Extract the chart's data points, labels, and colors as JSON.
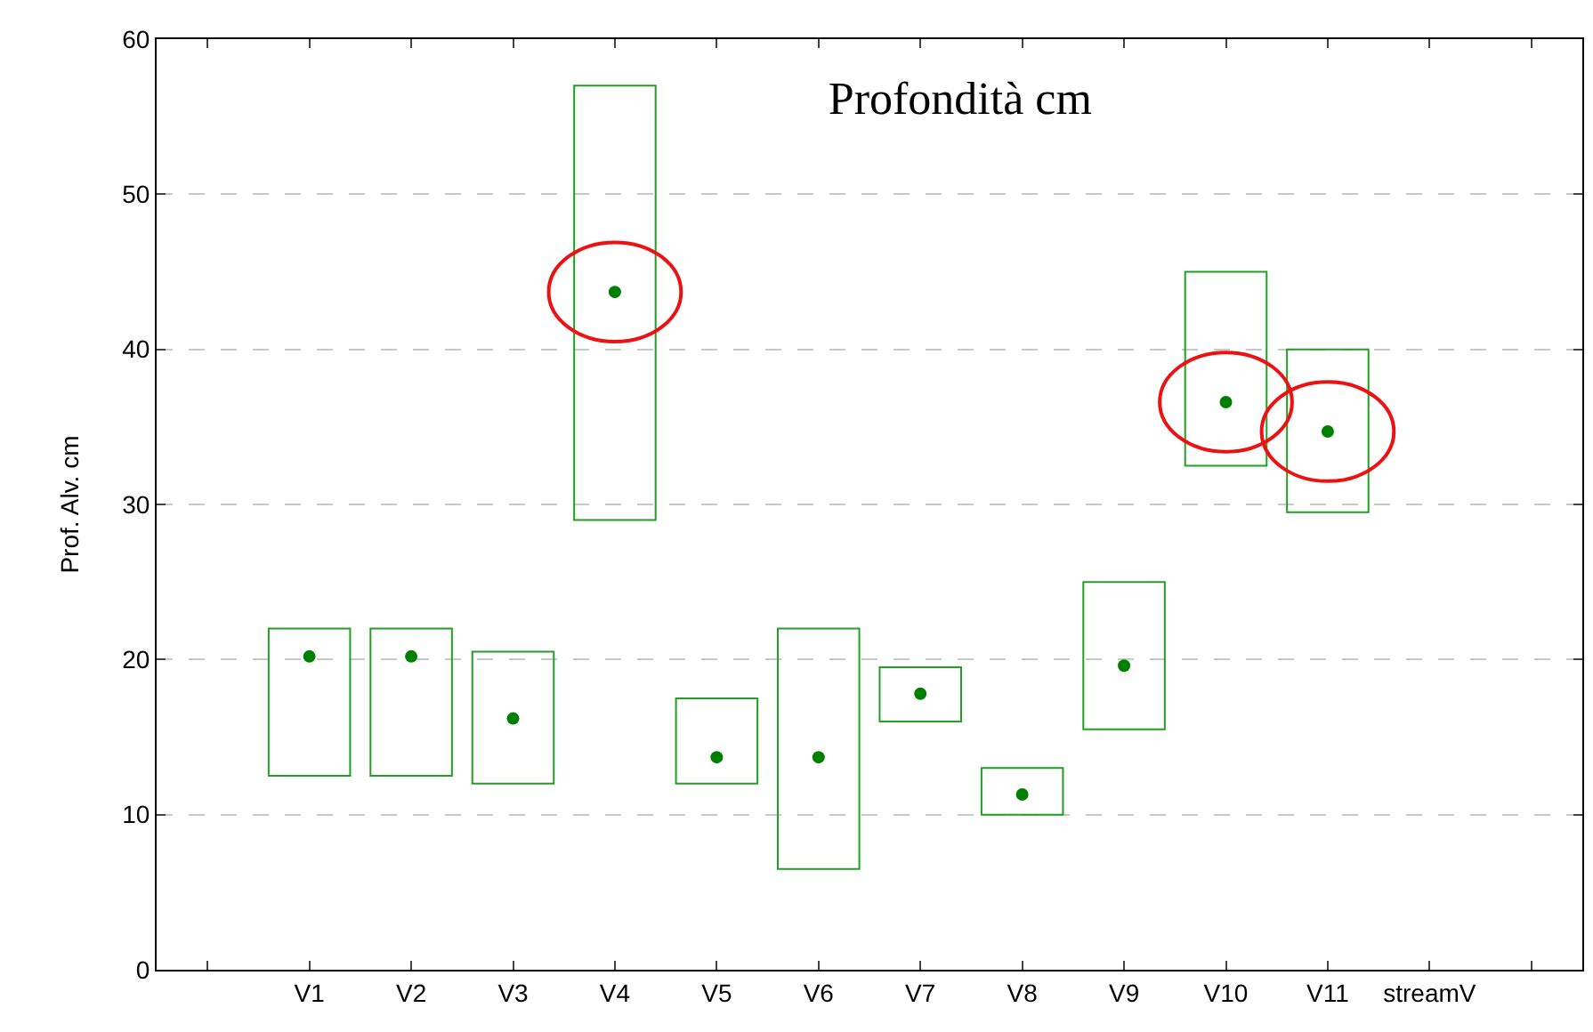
{
  "chart_data": {
    "type": "bar",
    "title": "Profondità cm",
    "ylabel": "Prof. Alv. cm",
    "categories": [
      null,
      "V1",
      "V2",
      "V3",
      "V4",
      "V5",
      "V6",
      "V7",
      "V8",
      "V9",
      "V10",
      "V11",
      "streamV",
      null
    ],
    "ylim": [
      0,
      60
    ],
    "yticks": [
      0,
      10,
      20,
      30,
      40,
      50,
      60
    ],
    "grid": "y",
    "series": [
      {
        "color": "#22a022",
        "base": [
          null,
          12.5,
          12.5,
          12,
          29,
          12,
          6.5,
          16,
          10,
          15.5,
          32.5,
          29.5,
          null,
          null
        ],
        "values": [
          null,
          9.5,
          9.5,
          8.5,
          28,
          5.5,
          15.5,
          3.5,
          3,
          9.5,
          12.5,
          10.5,
          null,
          null
        ]
      },
      {
        "type": "scatter",
        "color": "#008000",
        "marker": "circle",
        "values": [
          null,
          20.2,
          20.2,
          16.2,
          43.7,
          13.7,
          13.7,
          17.8,
          11.3,
          19.6,
          36.6,
          34.7,
          null,
          null
        ]
      }
    ]
  }
}
